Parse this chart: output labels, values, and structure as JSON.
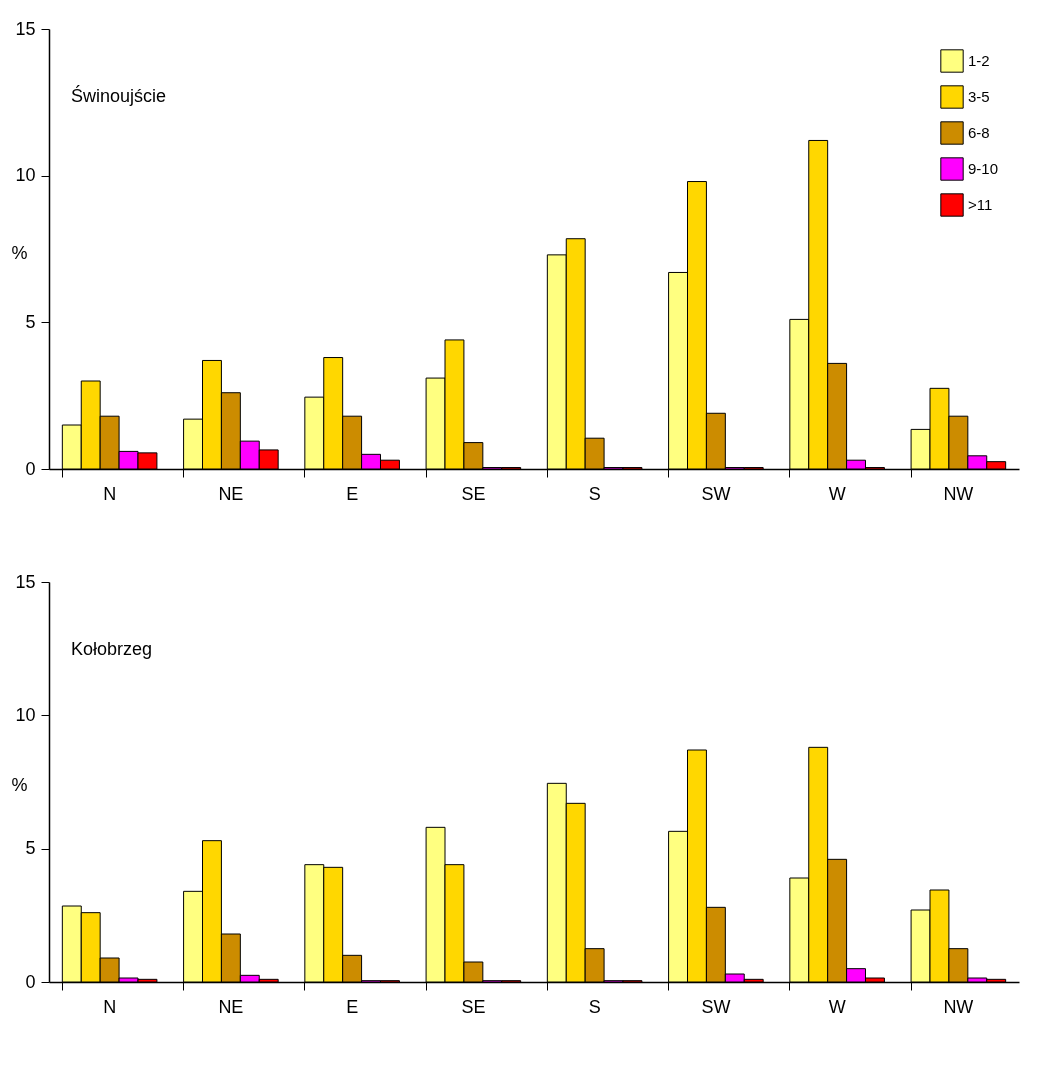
{
  "chart_data": [
    {
      "type": "bar",
      "title": "Świnoujście",
      "ylabel": "%",
      "categories": [
        "N",
        "NE",
        "E",
        "SE",
        "S",
        "SW",
        "W",
        "NW"
      ],
      "ylim": [
        0,
        15
      ],
      "yticks": [
        0,
        5,
        10,
        15
      ],
      "grid": false,
      "legend": "top right",
      "series": [
        {
          "name": "1-2",
          "color": "#ffff80",
          "values": [
            1.5,
            1.7,
            2.45,
            3.1,
            7.3,
            6.7,
            5.1,
            1.35
          ]
        },
        {
          "name": "3-5",
          "color": "#ffd700",
          "values": [
            3.0,
            3.7,
            3.8,
            4.4,
            7.85,
            9.8,
            11.2,
            2.75
          ]
        },
        {
          "name": "6-8",
          "color": "#cc8c00",
          "values": [
            1.8,
            2.6,
            1.8,
            0.9,
            1.05,
            1.9,
            3.6,
            1.8
          ]
        },
        {
          "name": "9-10",
          "color": "#ff00ff",
          "values": [
            0.6,
            0.95,
            0.5,
            0.05,
            0.05,
            0.05,
            0.3,
            0.45
          ]
        },
        {
          "name": ">11",
          "color": "#ff0000",
          "values": [
            0.55,
            0.65,
            0.3,
            0.05,
            0.05,
            0.05,
            0.05,
            0.25
          ]
        }
      ]
    },
    {
      "type": "bar",
      "title": "Kołobrzeg",
      "ylabel": "%",
      "categories": [
        "N",
        "NE",
        "E",
        "SE",
        "S",
        "SW",
        "W",
        "NW"
      ],
      "ylim": [
        0,
        15
      ],
      "yticks": [
        0,
        5,
        10,
        15
      ],
      "grid": false,
      "legend": false,
      "series": [
        {
          "color": "#ffff80",
          "values": [
            2.85,
            3.4,
            4.4,
            5.8,
            7.45,
            5.65,
            3.9,
            2.7
          ]
        },
        {
          "color": "#ffd700",
          "values": [
            2.6,
            5.3,
            4.3,
            4.4,
            6.7,
            8.7,
            8.8,
            3.45
          ]
        },
        {
          "color": "#cc8c00",
          "values": [
            0.9,
            1.8,
            1.0,
            0.75,
            1.25,
            2.8,
            4.6,
            1.25
          ]
        },
        {
          "color": "#ff00ff",
          "values": [
            0.15,
            0.25,
            0.05,
            0.05,
            0.05,
            0.3,
            0.5,
            0.15
          ]
        },
        {
          "color": "#ff0000",
          "values": [
            0.1,
            0.1,
            0.05,
            0.05,
            0.05,
            0.1,
            0.15,
            0.1
          ]
        }
      ]
    }
  ]
}
